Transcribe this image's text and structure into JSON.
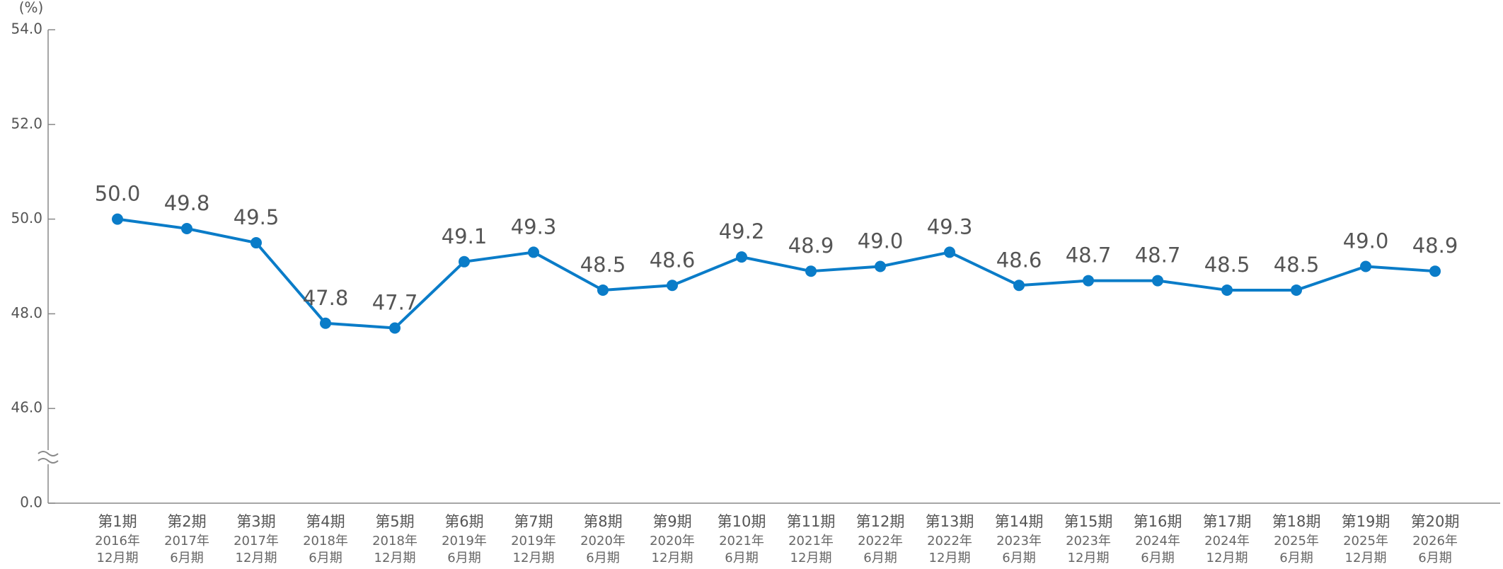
{
  "chart_data": {
    "type": "line",
    "y_label": "(%)",
    "categories": [
      [
        "第1期",
        "2016年",
        "12月期"
      ],
      [
        "第2期",
        "2017年",
        "6月期"
      ],
      [
        "第3期",
        "2017年",
        "12月期"
      ],
      [
        "第4期",
        "2018年",
        "6月期"
      ],
      [
        "第5期",
        "2018年",
        "12月期"
      ],
      [
        "第6期",
        "2019年",
        "6月期"
      ],
      [
        "第7期",
        "2019年",
        "12月期"
      ],
      [
        "第8期",
        "2020年",
        "6月期"
      ],
      [
        "第9期",
        "2020年",
        "12月期"
      ],
      [
        "第10期",
        "2021年",
        "6月期"
      ],
      [
        "第11期",
        "2021年",
        "12月期"
      ],
      [
        "第12期",
        "2022年",
        "6月期"
      ],
      [
        "第13期",
        "2022年",
        "12月期"
      ],
      [
        "第14期",
        "2023年",
        "6月期"
      ],
      [
        "第15期",
        "2023年",
        "12月期"
      ],
      [
        "第16期",
        "2024年",
        "6月期"
      ],
      [
        "第17期",
        "2024年",
        "12月期"
      ],
      [
        "第18期",
        "2025年",
        "6月期"
      ],
      [
        "第19期",
        "2025年",
        "12月期"
      ],
      [
        "第20期",
        "2026年",
        "6月期"
      ]
    ],
    "values": [
      50.0,
      49.8,
      49.5,
      47.8,
      47.7,
      49.1,
      49.3,
      48.5,
      48.6,
      49.2,
      48.9,
      49.0,
      49.3,
      48.6,
      48.7,
      48.7,
      48.5,
      48.5,
      49.0,
      48.9
    ],
    "value_labels": [
      "50.0",
      "49.8",
      "49.5",
      "47.8",
      "47.7",
      "49.1",
      "49.3",
      "48.5",
      "48.6",
      "49.2",
      "48.9",
      "49.0",
      "49.3",
      "48.6",
      "48.7",
      "48.7",
      "48.5",
      "48.5",
      "49.0",
      "48.9"
    ],
    "color": "#0a7cc8",
    "ylim": [
      0,
      54
    ],
    "yticks": [
      {
        "value": 0,
        "label": "0.0"
      },
      {
        "value": 46,
        "label": "46.0"
      },
      {
        "value": 48,
        "label": "48.0"
      },
      {
        "value": 50,
        "label": "50.0"
      },
      {
        "value": 52,
        "label": "52.0"
      },
      {
        "value": 54,
        "label": "54.0"
      }
    ],
    "y_axis_break": true
  }
}
